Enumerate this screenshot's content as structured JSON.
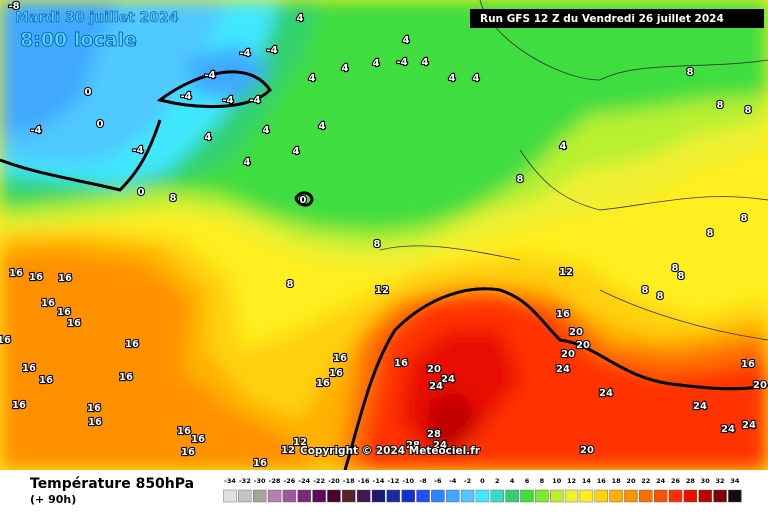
{
  "header": {
    "date": "Mardi 30 juillet 2024",
    "time": "8:00 locale",
    "run": "Run GFS 12 Z du Vendredi 26 juillet 2024"
  },
  "footer": {
    "title": "Température 850hPa",
    "lead": "(+ 90h)",
    "copyright": "Copyright © 2024 Meteociel.fr"
  },
  "legend": {
    "ticks": [
      -34,
      -32,
      -30,
      -28,
      -26,
      -24,
      -22,
      -20,
      -18,
      -16,
      -14,
      -12,
      -10,
      -8,
      -6,
      -4,
      -2,
      0,
      2,
      4,
      6,
      8,
      10,
      12,
      14,
      16,
      18,
      20,
      22,
      24,
      26,
      28,
      30,
      32,
      34
    ],
    "colors": [
      "#e0e0e0",
      "#c4c4c4",
      "#a4a4a4",
      "#b080b0",
      "#9a5a9a",
      "#7a2a7a",
      "#5a0a5a",
      "#4a0030",
      "#5a2030",
      "#3a1a5a",
      "#1a1a70",
      "#1a2aa0",
      "#1030d0",
      "#2050f0",
      "#3080ff",
      "#40a8ff",
      "#50c8ff",
      "#40e8ff",
      "#30e0c0",
      "#30d070",
      "#40dd40",
      "#80e830",
      "#b8f030",
      "#f0f030",
      "#ffee20",
      "#ffd010",
      "#ffb000",
      "#ff9000",
      "#ff7000",
      "#ff5000",
      "#ff3000",
      "#e81000",
      "#c00000",
      "#800000",
      "#101010"
    ]
  },
  "contour_labels": [
    -8,
    4,
    -4,
    -4,
    -4,
    -4,
    -4,
    -4,
    0,
    0,
    -4,
    -4,
    0,
    4,
    4,
    4,
    -4,
    4,
    4,
    4,
    4,
    4,
    4,
    4,
    4,
    4,
    0,
    8,
    8,
    8,
    8,
    8,
    8,
    8,
    8,
    8,
    12,
    12,
    8,
    8,
    8,
    8,
    16,
    16,
    16,
    16,
    16,
    16,
    16,
    16,
    16,
    16,
    16,
    16,
    16,
    16,
    16,
    16,
    16,
    16,
    12,
    12,
    16,
    16,
    16,
    16,
    16,
    20,
    20,
    20,
    24,
    20,
    24,
    24,
    24,
    28,
    28,
    24,
    20,
    24,
    24,
    24,
    20,
    16,
    4
  ]
}
